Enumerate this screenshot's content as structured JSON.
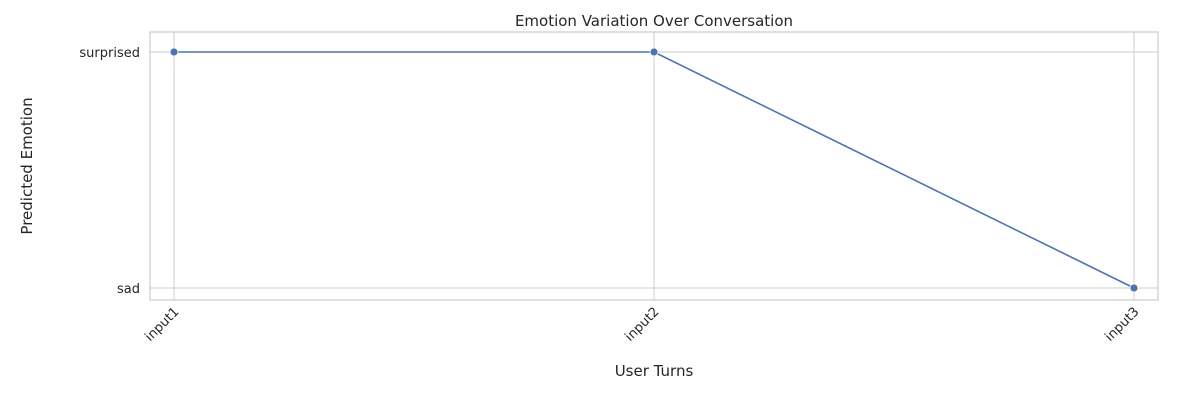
{
  "chart_data": {
    "type": "line",
    "title": "Emotion Variation Over Conversation",
    "xlabel": "User Turns",
    "ylabel": "Predicted Emotion",
    "categories": [
      "input1",
      "input2",
      "input3"
    ],
    "y_categories": [
      "sad",
      "surprised"
    ],
    "series": [
      {
        "values": [
          "surprised",
          "surprised",
          "sad"
        ],
        "color": "#4c72b0"
      }
    ],
    "grid": true,
    "x_tick_rotation_deg": 45,
    "marker": "circle"
  }
}
